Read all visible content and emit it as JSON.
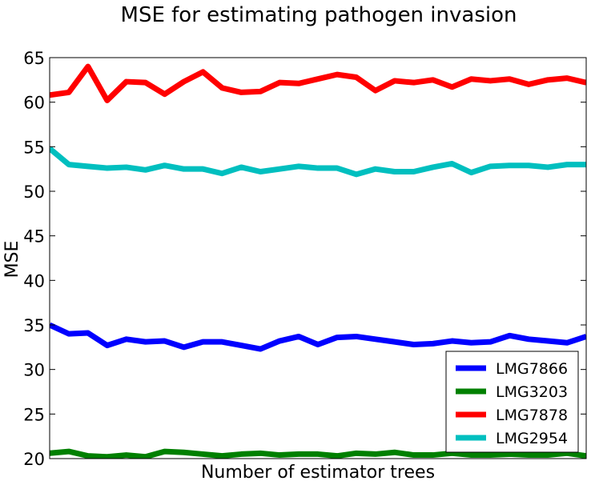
{
  "chart_data": {
    "type": "line",
    "title": "MSE for estimating pathogen invasion",
    "xlabel": "Number of estimator trees",
    "ylabel": "MSE",
    "ylim": [
      20,
      65
    ],
    "yticks": [
      20,
      25,
      30,
      35,
      40,
      45,
      50,
      55,
      60,
      65
    ],
    "grid": false,
    "legend_position": "bottom-right",
    "x": [
      1,
      2,
      3,
      4,
      5,
      6,
      7,
      8,
      9,
      10,
      11,
      12,
      13,
      14,
      15,
      16,
      17,
      18,
      19,
      20,
      21,
      22,
      23,
      24,
      25,
      26,
      27,
      28,
      29
    ],
    "series": [
      {
        "name": "LMG7866",
        "color": "#0000ff",
        "values": [
          35.0,
          34.0,
          34.1,
          32.7,
          33.4,
          33.1,
          33.2,
          32.5,
          33.1,
          33.1,
          32.7,
          32.3,
          33.2,
          33.7,
          32.8,
          33.6,
          33.7,
          33.4,
          33.1,
          32.8,
          32.9,
          33.2,
          33.0,
          33.1,
          33.8,
          33.4,
          33.2,
          33.0,
          33.7
        ]
      },
      {
        "name": "LMG3203",
        "color": "#008000",
        "values": [
          20.6,
          20.8,
          20.3,
          20.2,
          20.4,
          20.2,
          20.8,
          20.7,
          20.5,
          20.3,
          20.5,
          20.6,
          20.4,
          20.5,
          20.5,
          20.3,
          20.6,
          20.5,
          20.7,
          20.4,
          20.4,
          20.6,
          20.4,
          20.4,
          20.5,
          20.4,
          20.4,
          20.6,
          20.3
        ]
      },
      {
        "name": "LMG7878",
        "color": "#ff0000",
        "values": [
          60.8,
          61.1,
          64.0,
          60.2,
          62.3,
          62.2,
          60.9,
          62.3,
          63.4,
          61.6,
          61.1,
          61.2,
          62.2,
          62.1,
          62.6,
          63.1,
          62.8,
          61.3,
          62.4,
          62.2,
          62.5,
          61.7,
          62.6,
          62.4,
          62.6,
          62.0,
          62.5,
          62.7,
          62.2
        ]
      },
      {
        "name": "LMG2954",
        "color": "#00bfbf",
        "values": [
          54.8,
          53.0,
          52.8,
          52.6,
          52.7,
          52.4,
          52.9,
          52.5,
          52.5,
          52.0,
          52.7,
          52.2,
          52.5,
          52.8,
          52.6,
          52.6,
          51.9,
          52.5,
          52.2,
          52.2,
          52.7,
          53.1,
          52.1,
          52.8,
          52.9,
          52.9,
          52.7,
          53.0,
          53.0
        ]
      }
    ]
  }
}
